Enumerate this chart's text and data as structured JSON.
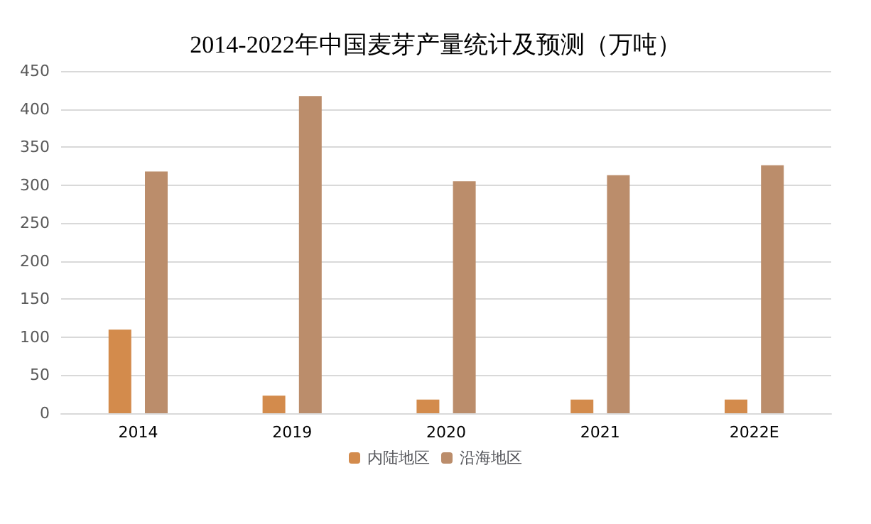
{
  "chart_data": {
    "type": "bar",
    "title": "2014-2022年中国麦芽产量统计及预测（万吨）",
    "categories": [
      "2014",
      "2019",
      "2020",
      "2021",
      "2022E"
    ],
    "series": [
      {
        "name": "内陆地区",
        "color": "#d38b4c",
        "values": [
          110,
          23,
          18,
          18,
          18
        ]
      },
      {
        "name": "沿海地区",
        "color": "#bb8d6b",
        "values": [
          318,
          417,
          305,
          313,
          326
        ]
      }
    ],
    "ylim": [
      0,
      450
    ],
    "yticks": [
      0,
      50,
      100,
      150,
      200,
      250,
      300,
      350,
      400,
      450
    ],
    "grid": "y",
    "legend": "bottom"
  }
}
